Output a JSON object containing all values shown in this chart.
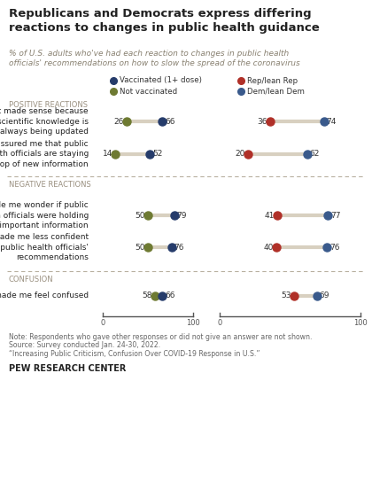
{
  "title": "Republicans and Democrats express differing\nreactions to changes in public health guidance",
  "subtitle": "% of U.S. adults who've had each reaction to changes in public health\nofficials' recommendations on how to slow the spread of the coronavirus",
  "rows": [
    {
      "label": "It made sense because\nscientific knowledge is\nalways being updated",
      "section": "positive",
      "vax_low": 26,
      "vax_high": 66,
      "rep_low": 36,
      "rep_high": 74
    },
    {
      "label": "It reassured me that public\nhealth officials are staying\non top of new information",
      "section": "positive",
      "vax_low": 14,
      "vax_high": 52,
      "rep_low": 20,
      "rep_high": 62
    },
    {
      "label": "It made me wonder if public\nhealth officials were holding\nback important information",
      "section": "negative",
      "vax_low": 50,
      "vax_high": 79,
      "rep_low": 41,
      "rep_high": 77
    },
    {
      "label": "It made me less confident\nin public health officials'\nrecommendations",
      "section": "negative",
      "vax_low": 50,
      "vax_high": 76,
      "rep_low": 40,
      "rep_high": 76
    },
    {
      "label": "It made me feel confused",
      "section": "confusion",
      "vax_low": 58,
      "vax_high": 66,
      "rep_low": 53,
      "rep_high": 69
    }
  ],
  "colors": {
    "vaccinated": "#263c6b",
    "not_vaccinated": "#6e7a32",
    "rep": "#b03028",
    "dem": "#3a5a8c",
    "line_color": "#d8d0c0",
    "background": "#ffffff",
    "section_label": "#9a9080",
    "divider": "#b8b0a0",
    "text_dark": "#222222",
    "text_label": "#333333",
    "note_text": "#666666"
  },
  "note_lines": [
    "Note: Respondents who gave other responses or did not give an answer are not shown.",
    "Source: Survey conducted Jan. 24-30, 2022.",
    "“Increasing Public Criticism, Confusion Over COVID-19 Response in U.S.”"
  ],
  "footer": "PEW RESEARCH CENTER"
}
